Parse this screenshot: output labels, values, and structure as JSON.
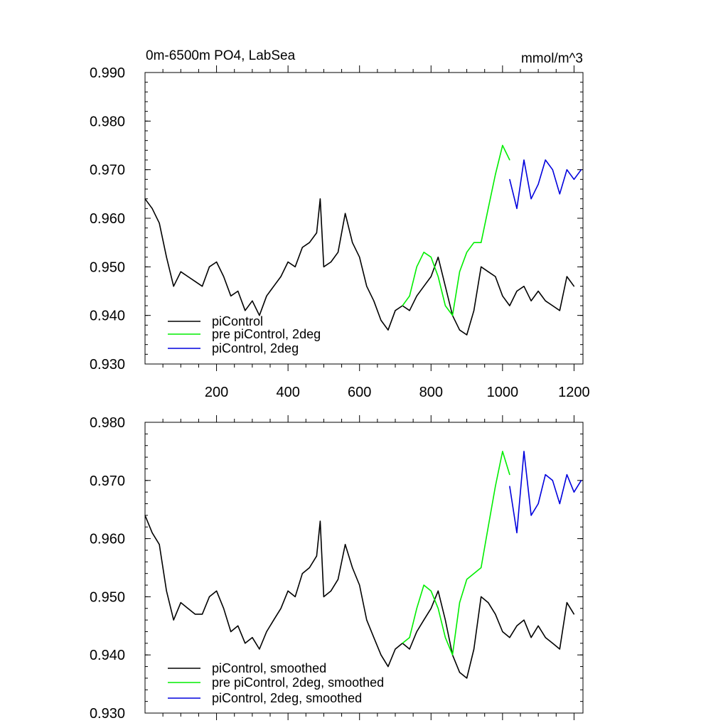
{
  "chart_data": [
    {
      "type": "line",
      "title_left": "0m-6500m PO4, LabSea",
      "title_right": "mmol/m^3",
      "xlim": [
        0,
        1225
      ],
      "ylim": [
        0.93,
        0.99
      ],
      "xticks": [
        200,
        400,
        600,
        800,
        1000,
        1200
      ],
      "xtick_labels": [
        "200",
        "400",
        "600",
        "800",
        "1000",
        "1200"
      ],
      "yticks": [
        0.93,
        0.94,
        0.95,
        0.96,
        0.97,
        0.98,
        0.99
      ],
      "ytick_labels": [
        "0.930",
        "0.940",
        "0.950",
        "0.960",
        "0.970",
        "0.980",
        "0.990"
      ],
      "legend_position": "bottom-left",
      "series": [
        {
          "name": "piControl",
          "color": "#000000",
          "x": [
            0,
            20,
            40,
            60,
            80,
            100,
            120,
            140,
            160,
            180,
            200,
            220,
            240,
            260,
            280,
            300,
            320,
            340,
            360,
            380,
            400,
            420,
            440,
            460,
            480,
            490,
            500,
            520,
            540,
            560,
            580,
            600,
            620,
            640,
            660,
            680,
            700,
            720,
            740,
            760,
            780,
            800,
            820,
            840,
            860,
            880,
            900,
            920,
            940,
            960,
            980,
            1000,
            1020,
            1040,
            1060,
            1080,
            1100,
            1120,
            1140,
            1160,
            1180,
            1200
          ],
          "y": [
            0.964,
            0.962,
            0.959,
            0.952,
            0.946,
            0.949,
            0.948,
            0.947,
            0.946,
            0.95,
            0.951,
            0.948,
            0.944,
            0.945,
            0.941,
            0.943,
            0.94,
            0.944,
            0.946,
            0.948,
            0.951,
            0.95,
            0.954,
            0.955,
            0.957,
            0.964,
            0.95,
            0.951,
            0.953,
            0.961,
            0.955,
            0.952,
            0.946,
            0.943,
            0.939,
            0.937,
            0.941,
            0.942,
            0.941,
            0.944,
            0.946,
            0.948,
            0.952,
            0.946,
            0.94,
            0.937,
            0.936,
            0.941,
            0.95,
            0.949,
            0.948,
            0.944,
            0.942,
            0.945,
            0.946,
            0.943,
            0.945,
            0.943,
            0.942,
            0.941,
            0.948,
            0.946
          ]
        },
        {
          "name": "pre piControl, 2deg",
          "color": "#00ee00",
          "x": [
            720,
            740,
            760,
            780,
            800,
            820,
            840,
            860,
            880,
            900,
            920,
            940,
            960,
            980,
            1000,
            1020
          ],
          "y": [
            0.942,
            0.944,
            0.95,
            0.953,
            0.952,
            0.948,
            0.942,
            0.94,
            0.949,
            0.953,
            0.955,
            0.955,
            0.962,
            0.969,
            0.975,
            0.972
          ]
        },
        {
          "name": "piControl, 2deg",
          "color": "#0000dd",
          "x": [
            1020,
            1040,
            1060,
            1080,
            1100,
            1120,
            1140,
            1160,
            1180,
            1200,
            1220
          ],
          "y": [
            0.968,
            0.962,
            0.972,
            0.964,
            0.967,
            0.972,
            0.97,
            0.965,
            0.97,
            0.968,
            0.97
          ]
        }
      ]
    },
    {
      "type": "line",
      "xlim": [
        0,
        1225
      ],
      "ylim": [
        0.93,
        0.98
      ],
      "yticks": [
        0.93,
        0.94,
        0.95,
        0.96,
        0.97,
        0.98
      ],
      "ytick_labels": [
        "0.930",
        "0.940",
        "0.950",
        "0.960",
        "0.970",
        "0.980"
      ],
      "legend_position": "bottom-left",
      "series": [
        {
          "name": "piControl, smoothed",
          "color": "#000000",
          "x": [
            0,
            20,
            40,
            60,
            80,
            100,
            120,
            140,
            160,
            180,
            200,
            220,
            240,
            260,
            280,
            300,
            320,
            340,
            360,
            380,
            400,
            420,
            440,
            460,
            480,
            490,
            500,
            520,
            540,
            560,
            580,
            600,
            620,
            640,
            660,
            680,
            700,
            720,
            740,
            760,
            780,
            800,
            820,
            840,
            860,
            880,
            900,
            920,
            940,
            960,
            980,
            1000,
            1020,
            1040,
            1060,
            1080,
            1100,
            1120,
            1140,
            1160,
            1180,
            1200
          ],
          "y": [
            0.964,
            0.961,
            0.959,
            0.951,
            0.946,
            0.949,
            0.948,
            0.947,
            0.947,
            0.95,
            0.951,
            0.948,
            0.944,
            0.945,
            0.942,
            0.943,
            0.941,
            0.944,
            0.946,
            0.948,
            0.951,
            0.95,
            0.954,
            0.955,
            0.957,
            0.963,
            0.95,
            0.951,
            0.953,
            0.959,
            0.955,
            0.952,
            0.946,
            0.943,
            0.94,
            0.938,
            0.941,
            0.942,
            0.941,
            0.944,
            0.946,
            0.948,
            0.951,
            0.946,
            0.94,
            0.937,
            0.936,
            0.941,
            0.95,
            0.949,
            0.947,
            0.944,
            0.943,
            0.945,
            0.946,
            0.943,
            0.945,
            0.943,
            0.942,
            0.941,
            0.949,
            0.947
          ]
        },
        {
          "name": "pre piControl, 2deg, smoothed",
          "color": "#00ee00",
          "x": [
            720,
            740,
            760,
            780,
            800,
            820,
            840,
            860,
            880,
            900,
            920,
            940,
            960,
            980,
            1000,
            1020
          ],
          "y": [
            0.942,
            0.943,
            0.948,
            0.952,
            0.951,
            0.948,
            0.943,
            0.94,
            0.949,
            0.953,
            0.954,
            0.955,
            0.962,
            0.969,
            0.975,
            0.971
          ]
        },
        {
          "name": "piControl, 2deg, smoothed",
          "color": "#0000dd",
          "x": [
            1020,
            1040,
            1060,
            1080,
            1100,
            1120,
            1140,
            1160,
            1180,
            1200,
            1220
          ],
          "y": [
            0.969,
            0.961,
            0.975,
            0.964,
            0.966,
            0.971,
            0.97,
            0.966,
            0.971,
            0.968,
            0.97
          ]
        }
      ]
    }
  ]
}
